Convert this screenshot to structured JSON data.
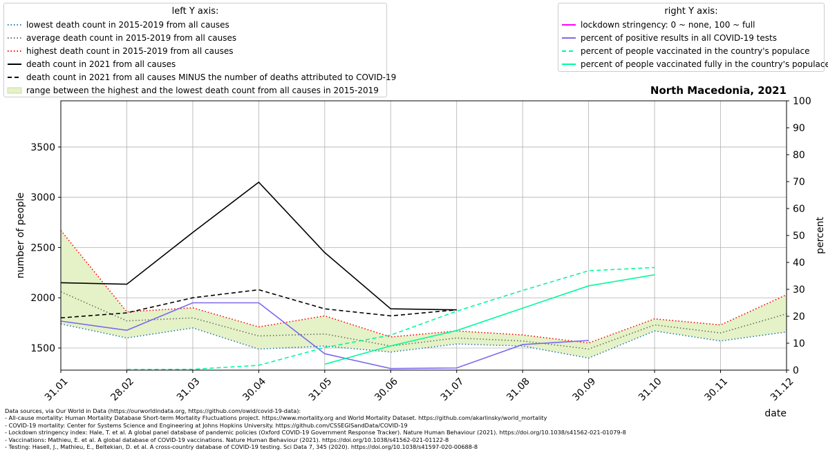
{
  "chart_data": {
    "type": "line",
    "title": "North Macedonia, 2021",
    "xlabel": "date",
    "ylabel_left": "number of people",
    "ylabel_right": "percent",
    "categories": [
      "31.01",
      "28.02",
      "31.03",
      "30.04",
      "31.05",
      "30.06",
      "31.07",
      "31.08",
      "30.09",
      "31.10",
      "30.11",
      "31.12"
    ],
    "ylim_left": [
      1280,
      3960
    ],
    "yticks_left": [
      1500,
      2000,
      2500,
      3000,
      3500
    ],
    "ylim_right": [
      0,
      100
    ],
    "yticks_right": [
      0,
      10,
      20,
      30,
      40,
      50,
      60,
      70,
      80,
      90,
      100
    ],
    "grid": true,
    "legend_left_title": "left Y axis:",
    "legend_right_title": "right Y axis:",
    "band": {
      "name": "range between the highest and the lowest death count from all causes in 2015-2019",
      "color": "#e5f2c8"
    },
    "series_left": [
      {
        "name": "lowest death count in 2015-2019 from all causes",
        "color": "#1f77b4",
        "style": "dotted",
        "values": [
          1740,
          1600,
          1700,
          1490,
          1520,
          1460,
          1540,
          1520,
          1400,
          1670,
          1570,
          1660
        ]
      },
      {
        "name": "average death count in 2015-2019 from all causes",
        "color": "#607060",
        "style": "dotted",
        "values": [
          2060,
          1770,
          1800,
          1620,
          1640,
          1520,
          1600,
          1570,
          1490,
          1730,
          1650,
          1840
        ]
      },
      {
        "name": "highest death count in 2015-2019 from all causes",
        "color": "#ff0000",
        "style": "dotted",
        "values": [
          2670,
          1860,
          1900,
          1710,
          1820,
          1610,
          1670,
          1630,
          1550,
          1790,
          1730,
          2030
        ]
      },
      {
        "name": "death count in 2021 from all causes",
        "color": "#000000",
        "style": "solid",
        "values": [
          2150,
          2135,
          2650,
          3150,
          2450,
          1890,
          1880,
          null,
          null,
          null,
          null,
          null
        ]
      },
      {
        "name": "death count in 2021 from all causes MINUS the number of deaths attributed to COVID-19",
        "color": "#000000",
        "style": "dashed",
        "values": [
          1800,
          1850,
          2000,
          2080,
          1890,
          1820,
          1880,
          null,
          null,
          null,
          null,
          null
        ]
      }
    ],
    "series_right": [
      {
        "name": "lockdown stringency: 0 ~ none, 100 ~ full",
        "color": "#ff00ff",
        "style": "solid",
        "values": [
          null,
          null,
          null,
          null,
          null,
          null,
          null,
          null,
          null,
          null,
          null,
          null
        ]
      },
      {
        "name": "percent of positive results in all COVID-19 tests",
        "color": "#7b68ee",
        "style": "solid",
        "values": [
          18.2,
          14.8,
          25.0,
          25.0,
          6.1,
          0.6,
          0.8,
          9.5,
          11.0,
          null,
          null,
          null
        ]
      },
      {
        "name": "percent of people vaccinated in the country's populace",
        "color": "#00fa9a",
        "style": "dashed",
        "values": [
          null,
          0.2,
          0.3,
          1.8,
          8.4,
          13.0,
          21.9,
          29.6,
          36.9,
          38.1,
          null,
          null
        ]
      },
      {
        "name": "percent of people vaccinated fully in the country's populace",
        "color": "#00fa9a",
        "style": "solid",
        "values": [
          null,
          null,
          null,
          null,
          2.2,
          9.0,
          14.7,
          23.0,
          31.3,
          35.4,
          null,
          null
        ]
      }
    ]
  },
  "sources": [
    "Data sources, via Our World in Data (https://ourworldindata.org, https://github.com/owid/covid-19-data):",
    "- All-cause mortality: Human Mortality Database Short-term Mortality Fluctuations project. https://www.mortality.org and World Mortality Dataset. https://github.com/akarlinsky/world_mortality",
    "- COVID-19 mortality: Center for Systems Science and Engineering at Johns Hopkins University. https://github.com/CSSEGISandData/COVID-19",
    "- Lockdown stringency index: Hale, T. et al. A global panel database of pandemic policies (Oxford COVID-19 Government Response Tracker). Nature Human Behaviour (2021). https://doi.org/10.1038/s41562-021-01079-8",
    "- Vaccinations: Mathieu, E. et al. A global database of COVID-19 vaccinations. Nature Human Behaviour (2021). https://doi.org/10.1038/s41562-021-01122-8",
    "- Testing: Hasell, J., Mathieu, E., Beltekian, D. et al. A cross-country database of COVID-19 testing. Sci Data 7, 345 (2020). https://doi.org/10.1038/s41597-020-00688-8"
  ]
}
